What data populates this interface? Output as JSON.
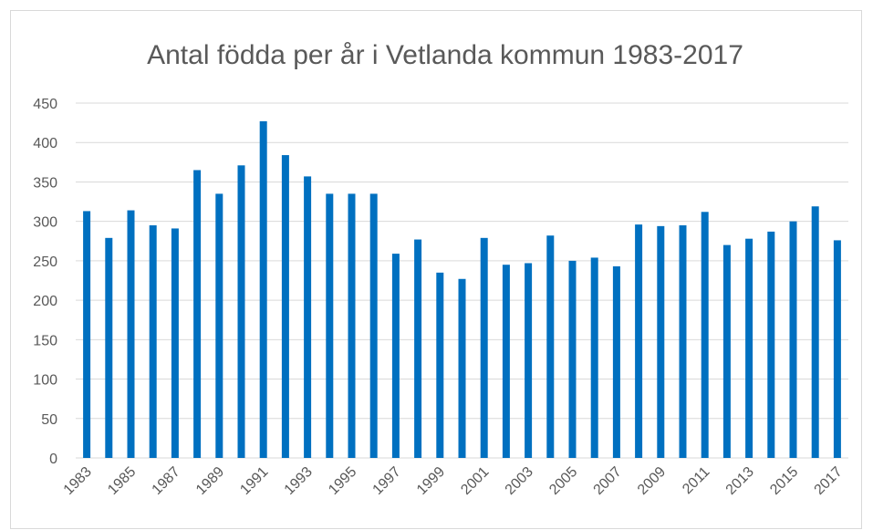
{
  "chart_data": {
    "type": "bar",
    "title": "Antal födda per år i Vetlanda kommun 1983-2017",
    "categories": [
      "1983",
      null,
      "1985",
      null,
      "1987",
      null,
      "1989",
      null,
      "1991",
      null,
      "1993",
      null,
      "1995",
      null,
      "1997",
      null,
      "1999",
      null,
      "2001",
      null,
      "2003",
      null,
      "2005",
      null,
      "2007",
      null,
      "2009",
      null,
      "2011",
      null,
      "2013",
      null,
      "2015",
      null,
      "2017"
    ],
    "values": [
      313,
      279,
      314,
      295,
      291,
      365,
      335,
      371,
      427,
      384,
      357,
      335,
      335,
      335,
      259,
      277,
      235,
      227,
      279,
      245,
      247,
      282,
      250,
      254,
      243,
      296,
      294,
      295,
      312,
      270,
      278,
      287,
      300,
      319,
      276
    ],
    "color": "#0070c0",
    "ylim": [
      0,
      450
    ],
    "yticks": [
      0,
      50,
      100,
      150,
      200,
      250,
      300,
      350,
      400,
      450
    ],
    "grid": true
  }
}
